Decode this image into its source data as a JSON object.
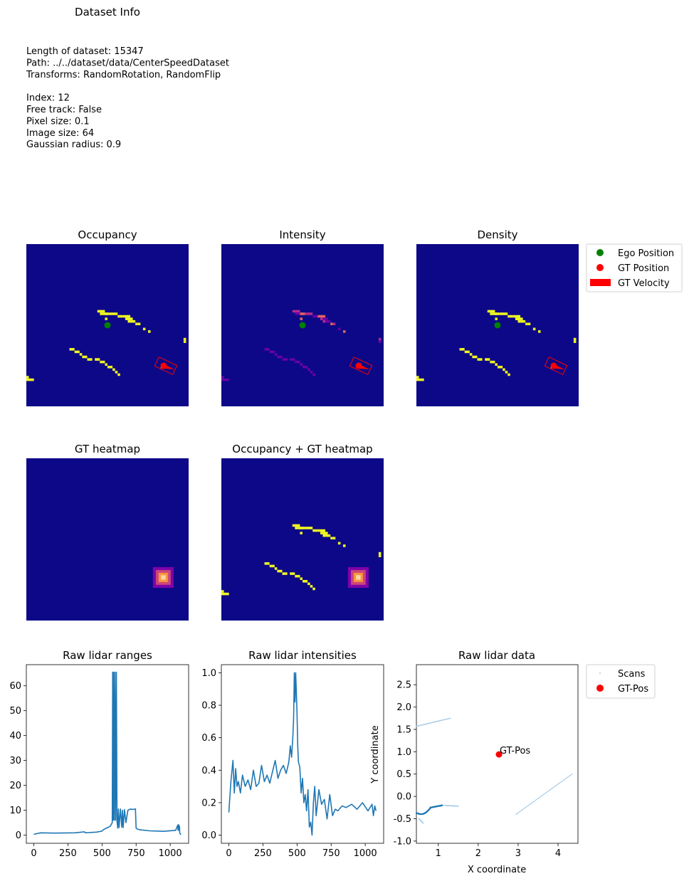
{
  "info": {
    "title": "Dataset Info",
    "lines": [
      "Length of dataset: 15347",
      "Path: ../../dataset/data/CenterSpeedDataset",
      "Transforms: RandomRotation, RandomFlip",
      "",
      "Index: 12",
      "Free track: False",
      "Pixel size: 0.1",
      "Image size: 64",
      "Gaussian radius: 0.9"
    ]
  },
  "colors": {
    "background": "#0d0887",
    "obstacle": "#f0f921",
    "intensity_low": "#6a00a8",
    "intensity_mid": "#b12a90",
    "intensity_high": "#e16462",
    "ego": "#008000",
    "gt": "#ff0000",
    "line": "#1f77b4",
    "scan_points": "#a6cbe8"
  },
  "chart_data": [
    {
      "type": "heatmap",
      "title": "Occupancy",
      "grid_size": 64,
      "ego_position": [
        32,
        32
      ],
      "gt_position": [
        55,
        48
      ],
      "gt_velocity_direction_deg": -25,
      "gt_box": true
    },
    {
      "type": "heatmap",
      "title": "Intensity",
      "grid_size": 64,
      "ego_position": [
        32,
        32
      ],
      "gt_position": [
        55,
        48
      ],
      "gt_velocity_direction_deg": -25,
      "gt_box": true
    },
    {
      "type": "heatmap",
      "title": "Density",
      "grid_size": 64,
      "ego_position": [
        32,
        32
      ],
      "gt_position": [
        55,
        48
      ],
      "gt_velocity_direction_deg": -25,
      "gt_box": true,
      "legend": {
        "placement": "outside-upper-right",
        "entries": [
          "Ego Position",
          "GT Position",
          "GT Velocity"
        ]
      }
    },
    {
      "type": "heatmap",
      "title": "GT heatmap",
      "grid_size": 64,
      "peak_position": [
        54,
        47
      ]
    },
    {
      "type": "heatmap",
      "title": "Occupancy + GT heatmap",
      "grid_size": 64,
      "peak_position": [
        54,
        47
      ]
    },
    {
      "type": "line",
      "title": "Raw lidar ranges",
      "xlim": [
        -55,
        1135
      ],
      "ylim": [
        -3.3,
        68.5
      ],
      "xticks": [
        0,
        250,
        500,
        750,
        1000
      ],
      "yticks": [
        0,
        10,
        20,
        30,
        40,
        50,
        60,
        70
      ],
      "x": [
        0,
        50,
        150,
        300,
        370,
        380,
        400,
        460,
        500,
        510,
        540,
        560,
        575,
        578,
        582,
        585,
        590,
        595,
        600,
        605,
        610,
        615,
        620,
        625,
        635,
        645,
        650,
        655,
        665,
        675,
        690,
        710,
        725,
        745,
        750,
        760,
        780,
        850,
        950,
        1040,
        1055,
        1058,
        1062,
        1065,
        1068,
        1070,
        1075,
        1079
      ],
      "y": [
        0.3,
        0.9,
        0.8,
        0.9,
        1.3,
        0.9,
        1.0,
        1.2,
        1.6,
        2.2,
        3.0,
        3.5,
        5.0,
        65.5,
        6.0,
        65.5,
        6.0,
        65.5,
        6.0,
        65.5,
        5.5,
        2.8,
        10.5,
        3.0,
        10.5,
        3.2,
        10.0,
        3.0,
        10.2,
        5.0,
        10.0,
        10.5,
        10.3,
        10.5,
        2.8,
        2.4,
        2.1,
        1.7,
        1.5,
        1.9,
        4.0,
        1.9,
        4.2,
        2.0,
        3.5,
        1.0,
        0.3,
        0.3
      ]
    },
    {
      "type": "line",
      "title": "Raw lidar intensities",
      "xlim": [
        -55,
        1135
      ],
      "ylim": [
        -0.05,
        1.05
      ],
      "xticks": [
        0,
        250,
        500,
        750,
        1000
      ],
      "yticks": [
        0.0,
        0.2,
        0.4,
        0.6,
        0.8,
        1.0
      ],
      "x": [
        0,
        15,
        30,
        40,
        50,
        60,
        70,
        85,
        100,
        120,
        140,
        160,
        180,
        200,
        220,
        240,
        260,
        280,
        300,
        320,
        340,
        360,
        380,
        400,
        420,
        440,
        450,
        460,
        470,
        475,
        480,
        485,
        490,
        495,
        500,
        505,
        510,
        520,
        530,
        540,
        550,
        560,
        570,
        580,
        590,
        600,
        610,
        620,
        630,
        640,
        660,
        680,
        700,
        720,
        740,
        760,
        780,
        800,
        830,
        860,
        900,
        940,
        980,
        1020,
        1050,
        1060,
        1070,
        1079
      ],
      "y": [
        0.14,
        0.33,
        0.46,
        0.26,
        0.41,
        0.3,
        0.33,
        0.26,
        0.37,
        0.3,
        0.34,
        0.28,
        0.4,
        0.3,
        0.32,
        0.43,
        0.33,
        0.37,
        0.32,
        0.39,
        0.46,
        0.35,
        0.4,
        0.43,
        0.38,
        0.45,
        0.55,
        0.48,
        0.62,
        0.72,
        1.0,
        0.82,
        1.0,
        0.88,
        0.75,
        0.55,
        0.45,
        0.42,
        0.26,
        0.35,
        0.2,
        0.25,
        0.15,
        0.28,
        0.05,
        0.08,
        0.0,
        0.2,
        0.3,
        0.12,
        0.28,
        0.19,
        0.22,
        0.1,
        0.25,
        0.12,
        0.16,
        0.15,
        0.18,
        0.17,
        0.19,
        0.16,
        0.2,
        0.15,
        0.19,
        0.12,
        0.18,
        0.15
      ]
    },
    {
      "type": "scatter",
      "title": "Raw lidar data",
      "xlabel": "X coordinate",
      "ylabel": "Y coordinate",
      "xlim": [
        0.45,
        4.5
      ],
      "ylim": [
        -1.05,
        2.95
      ],
      "xticks": [
        1,
        2,
        3,
        4
      ],
      "yticks": [
        -1.0,
        -0.5,
        0.0,
        0.5,
        1.0,
        1.5,
        2.0,
        2.5
      ],
      "series": [
        {
          "name": "Scans",
          "segments": [
            {
              "from": [
                0.45,
                1.57
              ],
              "to": [
                1.3,
                1.75
              ]
            },
            {
              "from": [
                0.45,
                -0.37
              ],
              "to": [
                0.8,
                -0.25
              ]
            },
            {
              "from": [
                0.8,
                -0.25
              ],
              "to": [
                1.1,
                -0.2
              ]
            },
            {
              "from": [
                1.15,
                -0.2
              ],
              "to": [
                1.5,
                -0.22
              ]
            },
            {
              "from": [
                0.52,
                -0.5
              ],
              "to": [
                0.62,
                -0.6
              ]
            },
            {
              "from": [
                2.95,
                -0.4
              ],
              "to": [
                4.35,
                0.5
              ]
            }
          ]
        },
        {
          "name": "GT-Pos",
          "x": [
            2.52
          ],
          "y": [
            0.94
          ],
          "label": "GT-Pos"
        }
      ],
      "legend": {
        "placement": "outside-upper-right",
        "entries": [
          "Scans",
          "GT-Pos"
        ]
      }
    }
  ]
}
